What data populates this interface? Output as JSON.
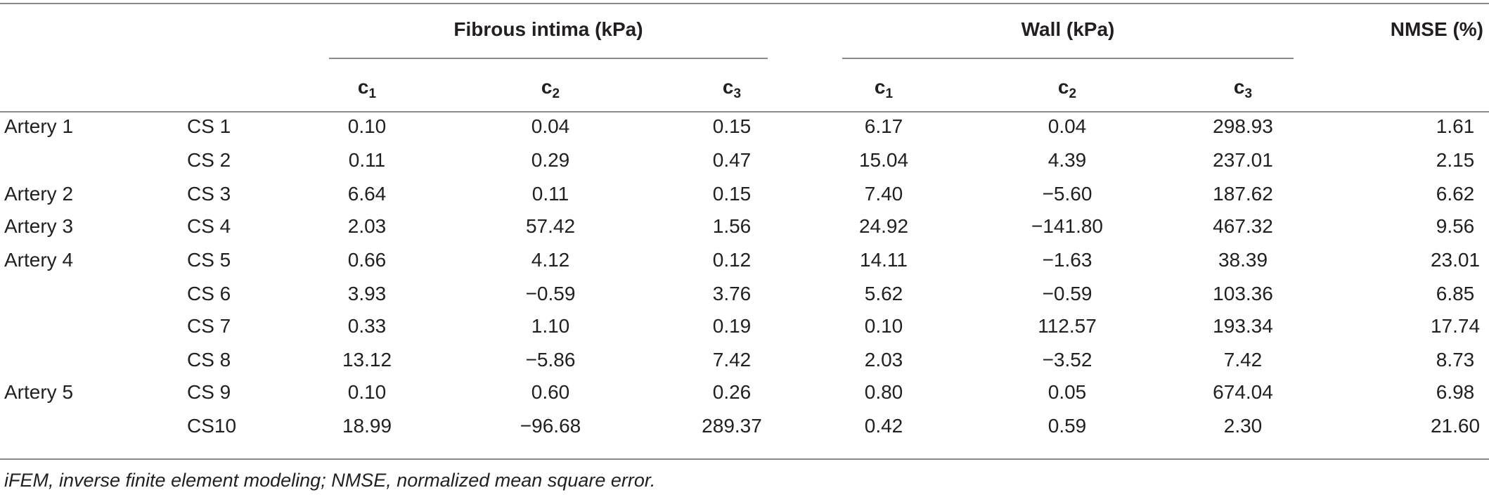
{
  "headers": {
    "fibrous_intima": "Fibrous intima (kPa)",
    "wall": "Wall (kPa)",
    "nmse": "NMSE (%)",
    "param_base": "c",
    "params": [
      {
        "base": "c",
        "sub": "1"
      },
      {
        "base": "c",
        "sub": "2"
      },
      {
        "base": "c",
        "sub": "3"
      },
      {
        "base": "c",
        "sub": "1"
      },
      {
        "base": "c",
        "sub": "2"
      },
      {
        "base": "c",
        "sub": "3"
      }
    ]
  },
  "rows": [
    {
      "artery": "Artery 1",
      "cs": "CS 1",
      "values": [
        "0.10",
        "0.04",
        "0.15",
        "6.17",
        "0.04",
        "298.93",
        "1.61"
      ]
    },
    {
      "artery": "",
      "cs": "CS 2",
      "values": [
        "0.11",
        "0.29",
        "0.47",
        "15.04",
        "4.39",
        "237.01",
        "2.15"
      ]
    },
    {
      "artery": "Artery 2",
      "cs": "CS 3",
      "values": [
        "6.64",
        "0.11",
        "0.15",
        "7.40",
        "−5.60",
        "187.62",
        "6.62"
      ]
    },
    {
      "artery": "Artery 3",
      "cs": "CS 4",
      "values": [
        "2.03",
        "57.42",
        "1.56",
        "24.92",
        "−141.80",
        "467.32",
        "9.56"
      ]
    },
    {
      "artery": "Artery 4",
      "cs": "CS 5",
      "values": [
        "0.66",
        "4.12",
        "0.12",
        "14.11",
        "−1.63",
        "38.39",
        "23.01"
      ]
    },
    {
      "artery": "",
      "cs": "CS 6",
      "values": [
        "3.93",
        "−0.59",
        "3.76",
        "5.62",
        "−0.59",
        "103.36",
        "6.85"
      ]
    },
    {
      "artery": "",
      "cs": "CS 7",
      "values": [
        "0.33",
        "1.10",
        "0.19",
        "0.10",
        "112.57",
        "193.34",
        "17.74"
      ]
    },
    {
      "artery": "",
      "cs": "CS 8",
      "values": [
        "13.12",
        "−5.86",
        "7.42",
        "2.03",
        "−3.52",
        "7.42",
        "8.73"
      ]
    },
    {
      "artery": "Artery 5",
      "cs": "CS 9",
      "values": [
        "0.10",
        "0.60",
        "0.26",
        "0.80",
        "0.05",
        "674.04",
        "6.98"
      ]
    },
    {
      "artery": "",
      "cs": "CS10",
      "values": [
        "18.99",
        "−96.68",
        "289.37",
        "0.42",
        "0.59",
        "2.30",
        "21.60"
      ]
    }
  ],
  "footnote": "iFEM, inverse finite element modeling; NMSE, normalized mean square error."
}
